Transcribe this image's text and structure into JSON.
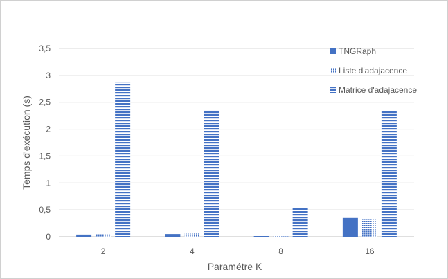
{
  "chart_data": {
    "type": "bar",
    "title": "",
    "xlabel": "Paramétre K",
    "ylabel": "Temps d'exécution (s)",
    "categories": [
      "2",
      "4",
      "8",
      "16"
    ],
    "ylim": [
      0,
      3.5
    ],
    "yticks": [
      "0",
      "0,5",
      "1",
      "1,5",
      "2",
      "2,5",
      "3",
      "3,5"
    ],
    "ytick_values": [
      0,
      0.5,
      1,
      1.5,
      2,
      2.5,
      3,
      3.5
    ],
    "grid": true,
    "legend_position": "right",
    "series": [
      {
        "name": "TNGRaph",
        "values": [
          0.04,
          0.05,
          0.01,
          0.35
        ],
        "color": "#4472c4",
        "pattern": "solid"
      },
      {
        "name": "Liste d'adajacence",
        "values": [
          0.05,
          0.06,
          0.01,
          0.33
        ],
        "color": "#4472c4",
        "pattern": "dots"
      },
      {
        "name": "Matrice d'adajacence",
        "values": [
          2.87,
          2.35,
          0.53,
          2.33
        ],
        "color": "#4472c4",
        "pattern": "hstripes"
      }
    ]
  }
}
